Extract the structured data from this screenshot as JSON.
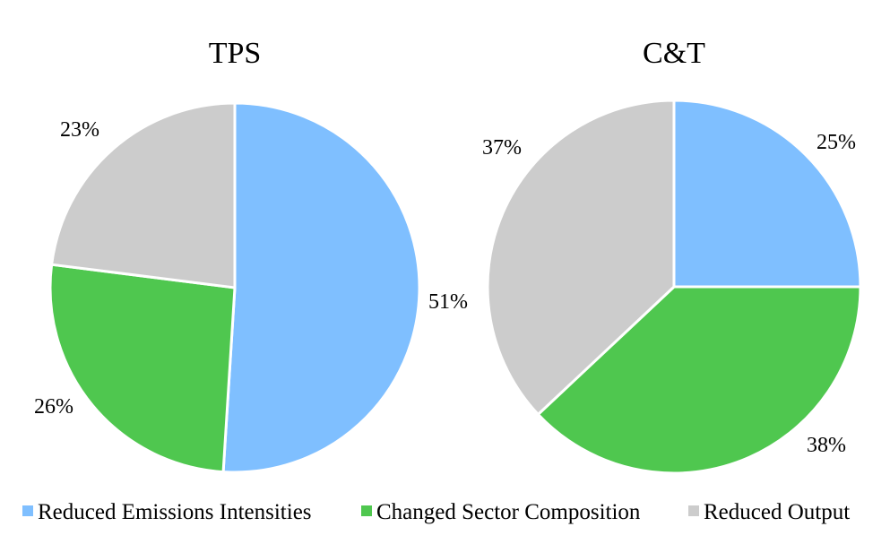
{
  "chart_data": [
    {
      "type": "pie",
      "title": "TPS",
      "categories": [
        "Reduced Emissions Intensities",
        "Changed Sector Composition",
        "Reduced Output"
      ],
      "values": [
        51,
        26,
        23
      ],
      "labels": [
        "51%",
        "26%",
        "23%"
      ],
      "colors": [
        "#7fbfff",
        "#4fc74f",
        "#cccccc"
      ],
      "legend": "bottom"
    },
    {
      "type": "pie",
      "title": "C&T",
      "categories": [
        "Reduced Emissions Intensities",
        "Changed Sector Composition",
        "Reduced Output"
      ],
      "values": [
        25,
        38,
        37
      ],
      "labels": [
        "25%",
        "38%",
        "37%"
      ],
      "colors": [
        "#7fbfff",
        "#4fc74f",
        "#cccccc"
      ],
      "legend": "bottom"
    }
  ],
  "legend": {
    "items": [
      {
        "label": "Reduced Emissions Intensities",
        "color": "#7fbfff"
      },
      {
        "label": "Changed Sector Composition",
        "color": "#4fc74f"
      },
      {
        "label": "Reduced Output",
        "color": "#cccccc"
      }
    ]
  }
}
